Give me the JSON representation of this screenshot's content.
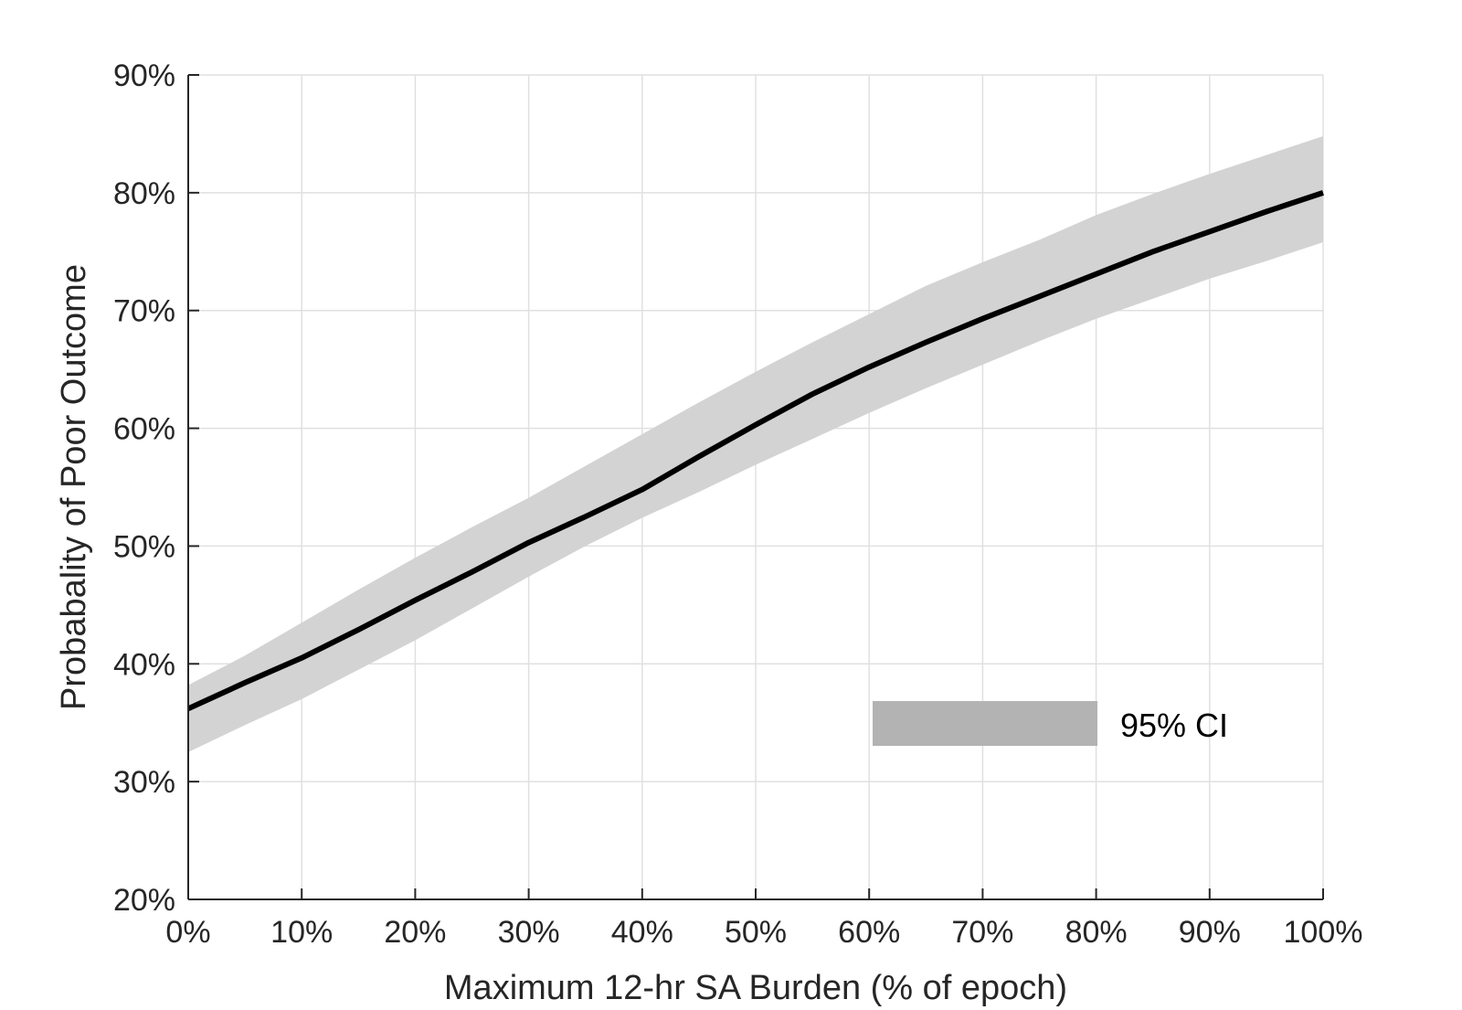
{
  "chart_data": {
    "type": "line",
    "title": "",
    "xlabel": "Maximum 12-hr SA Burden (% of epoch)",
    "ylabel": "Probabality of Poor Outcome",
    "xlim": [
      0,
      100
    ],
    "ylim": [
      20,
      90
    ],
    "x_ticks": [
      0,
      10,
      20,
      30,
      40,
      50,
      60,
      70,
      80,
      90,
      100
    ],
    "y_ticks": [
      20,
      30,
      40,
      50,
      60,
      70,
      80,
      90
    ],
    "x_tick_labels": [
      "0%",
      "10%",
      "20%",
      "30%",
      "40%",
      "50%",
      "60%",
      "70%",
      "80%",
      "90%",
      "100%"
    ],
    "y_tick_labels": [
      "20%",
      "30%",
      "40%",
      "50%",
      "60%",
      "70%",
      "80%",
      "90%"
    ],
    "grid": true,
    "x": [
      0,
      5,
      10,
      15,
      20,
      25,
      30,
      35,
      40,
      45,
      50,
      55,
      60,
      65,
      70,
      75,
      80,
      85,
      90,
      95,
      100
    ],
    "series": [
      {
        "values": [
          36.2,
          38.4,
          40.5,
          42.9,
          45.4,
          47.8,
          50.3,
          52.5,
          54.8,
          57.6,
          60.3,
          62.9,
          65.2,
          67.3,
          69.3,
          71.2,
          73.1,
          75.0,
          76.7,
          78.4,
          80.0
        ]
      }
    ],
    "confidence_band": {
      "label": "95% CI",
      "lower": [
        32.5,
        34.8,
        37.0,
        39.5,
        42.0,
        44.7,
        47.4,
        50.0,
        52.4,
        54.6,
        56.9,
        59.1,
        61.3,
        63.4,
        65.4,
        67.4,
        69.3,
        71.0,
        72.7,
        74.2,
        75.8
      ],
      "upper": [
        38.2,
        40.7,
        43.5,
        46.3,
        49.0,
        51.6,
        54.1,
        56.8,
        59.5,
        62.2,
        64.8,
        67.3,
        69.7,
        72.1,
        74.1,
        76.0,
        78.1,
        79.9,
        81.6,
        83.2,
        84.8
      ]
    },
    "legend": {
      "label": "95% CI",
      "position": "bottom-right"
    },
    "colors": {
      "line": "#000000",
      "band": "#d3d3d3",
      "legend_patch": "#b3b3b3",
      "grid": "#e0e0e0",
      "axis": "#262626"
    }
  }
}
